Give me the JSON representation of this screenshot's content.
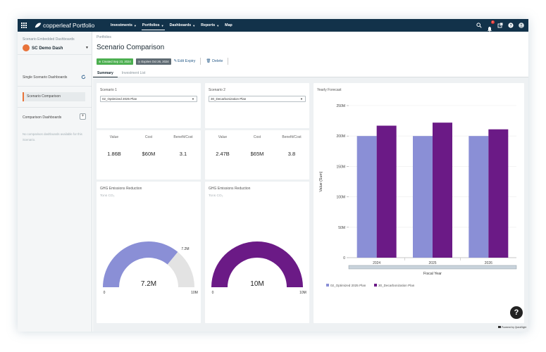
{
  "app": {
    "brand": "copperleaf Portfolio"
  },
  "nav": {
    "items": [
      {
        "label": "Investments",
        "caret": true,
        "active": false
      },
      {
        "label": "Portfolios",
        "caret": true,
        "active": true
      },
      {
        "label": "Dashboards",
        "caret": true,
        "active": false
      },
      {
        "label": "Reports",
        "caret": true,
        "active": false
      },
      {
        "label": "Map",
        "caret": false,
        "active": false
      }
    ],
    "notification_count": "2",
    "icons": [
      "search-icon",
      "bell-icon",
      "external-link-icon",
      "help-icon",
      "user-avatar-icon"
    ]
  },
  "sidebar": {
    "section_label": "Scenario Embedded Dashboards",
    "dashboard_name": "SC Demo Dash",
    "single_label": "Single Scenario Dashboards",
    "active_item": "Scenario Comparison",
    "comparison_label": "Comparison Dashboards",
    "empty_text": "No comparison dashboards available for this Scenario.",
    "accent": "#e8733a"
  },
  "header": {
    "breadcrumb": "Portfolios",
    "title": "Scenario Comparison",
    "created": "Created Sep 23, 2024",
    "expires": "Expires Oct 26, 2024",
    "edit_expiry": "Edit Expiry",
    "delete": "Delete",
    "tabs": [
      {
        "label": "Summary",
        "active": true
      },
      {
        "label": "Investment List",
        "active": false
      }
    ]
  },
  "scenarios": [
    {
      "title": "Scenario 1",
      "selected": "02_Optimized 2025 Plan",
      "value_label": "Value",
      "value": "1.86B",
      "cost_label": "Cost",
      "cost": "$60M",
      "bc_label": "Benefit/Cost",
      "bc": "3.1",
      "ghg_title": "GHG Emissions Reduction",
      "unit": "Tons CO₂",
      "gauge_value": "7.2M",
      "gauge_fraction": 0.72,
      "gauge_min": "0",
      "gauge_max": "10M",
      "gauge_target": "7.2M",
      "color": "#8a8fd6"
    },
    {
      "title": "Scenario 2",
      "selected": "30_Decarbonization Plan",
      "value_label": "Value",
      "value": "2.47B",
      "cost_label": "Cost",
      "cost": "$65M",
      "bc_label": "Benefit/Cost",
      "bc": "3.8",
      "ghg_title": "GHG Emissions Reduction",
      "unit": "Tons CO₂",
      "gauge_value": "10M",
      "gauge_fraction": 1.0,
      "gauge_min": "0",
      "gauge_max": "10M",
      "color": "#6b1a86"
    }
  ],
  "chart_data": {
    "type": "bar",
    "title": "Yearly Forecast",
    "xlabel": "Fiscal Year",
    "ylabel": "Value (Sum)",
    "categories": [
      "2024",
      "2025",
      "2026"
    ],
    "series": [
      {
        "name": "02_Optimized 2025 Plan",
        "values": [
          200,
          200,
          200
        ],
        "color": "#8a8fd6"
      },
      {
        "name": "30_Decarbonization Plan",
        "values": [
          217,
          222,
          211
        ],
        "color": "#6b1a86"
      }
    ],
    "ylim": [
      0,
      250
    ],
    "yticks": [
      "0",
      "50M",
      "100M",
      "150M",
      "200M",
      "250M"
    ],
    "grid": true,
    "legend": "bottom-left"
  },
  "footer": {
    "powered": "Powered by QuickSight",
    "help": "?"
  }
}
